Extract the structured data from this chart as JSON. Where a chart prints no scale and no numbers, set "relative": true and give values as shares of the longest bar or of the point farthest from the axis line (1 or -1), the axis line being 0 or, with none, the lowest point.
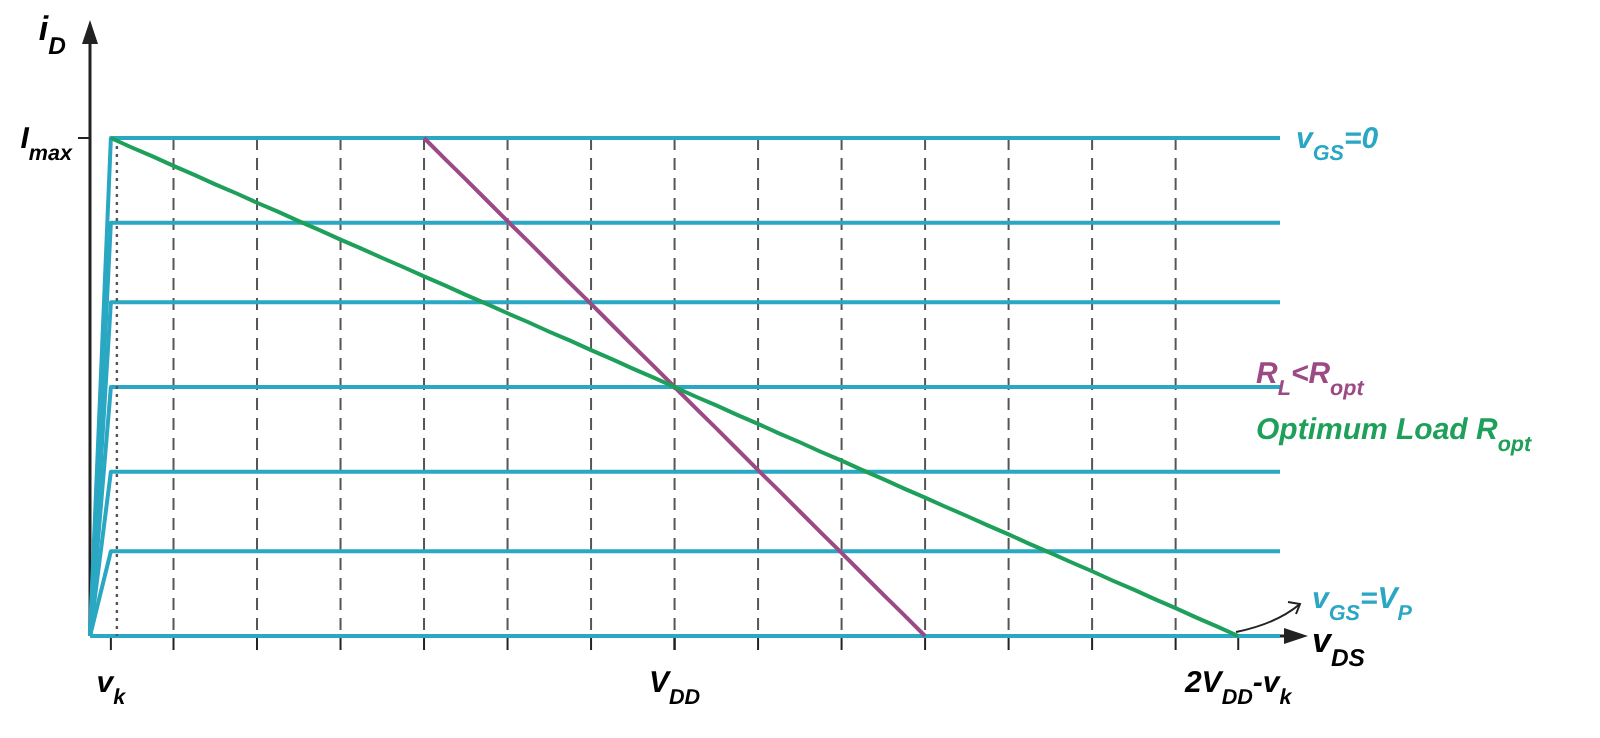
{
  "chart_data": {
    "type": "line",
    "xlabel": "v$_{DS}$",
    "ylabel": "i$_{D}$",
    "relative": true,
    "grid": "x",
    "marker": "none",
    "annotations": [
      "I$_{max}$"
    ],
    "categories": [
      null,
      "v$_{k}$",
      null,
      null,
      null,
      null,
      null,
      null,
      null,
      null,
      null,
      null,
      null,
      null,
      null,
      null,
      null,
      null,
      null,
      null,
      null,
      null,
      null,
      null,
      null,
      null,
      null,
      null,
      "V$_{DD}$",
      null,
      null,
      null,
      null,
      null,
      null,
      null,
      null,
      null,
      null,
      null,
      null,
      null,
      null,
      null,
      null,
      null,
      null,
      null,
      null,
      null,
      null,
      null,
      null,
      null,
      null,
      "2V$_{DD}$-v$_{k}$",
      null,
      null
    ],
    "ref_lines": [
      {
        "axis": "x",
        "value": "v$_{k}$",
        "color": "#555555",
        "line_style": "dotted"
      }
    ],
    "series": [
      {
        "name": "v$_{GS}$=0",
        "color": "#2aa7c3",
        "values": [
          0,
          1,
          1,
          1,
          1,
          1,
          1,
          1,
          1,
          1,
          1,
          1,
          1,
          1,
          1,
          1,
          1,
          1,
          1,
          1,
          1,
          1,
          1,
          1,
          1,
          1,
          1,
          1,
          1,
          1,
          1,
          1,
          1,
          1,
          1,
          1,
          1,
          1,
          1,
          1,
          1,
          1,
          1,
          1,
          1,
          1,
          1,
          1,
          1,
          1,
          1,
          1,
          1,
          1,
          1,
          1,
          1,
          1
        ]
      },
      {
        "color": "#2aa7c3",
        "values": [
          0,
          0.83,
          0.83,
          0.83,
          0.83,
          0.83,
          0.83,
          0.83,
          0.83,
          0.83,
          0.83,
          0.83,
          0.83,
          0.83,
          0.83,
          0.83,
          0.83,
          0.83,
          0.83,
          0.83,
          0.83,
          0.83,
          0.83,
          0.83,
          0.83,
          0.83,
          0.83,
          0.83,
          0.83,
          0.83,
          0.83,
          0.83,
          0.83,
          0.83,
          0.83,
          0.83,
          0.83,
          0.83,
          0.83,
          0.83,
          0.83,
          0.83,
          0.83,
          0.83,
          0.83,
          0.83,
          0.83,
          0.83,
          0.83,
          0.83,
          0.83,
          0.83,
          0.83,
          0.83,
          0.83,
          0.83,
          0.83,
          0.83
        ]
      },
      {
        "color": "#2aa7c3",
        "values": [
          0,
          0.67,
          0.67,
          0.67,
          0.67,
          0.67,
          0.67,
          0.67,
          0.67,
          0.67,
          0.67,
          0.67,
          0.67,
          0.67,
          0.67,
          0.67,
          0.67,
          0.67,
          0.67,
          0.67,
          0.67,
          0.67,
          0.67,
          0.67,
          0.67,
          0.67,
          0.67,
          0.67,
          0.67,
          0.67,
          0.67,
          0.67,
          0.67,
          0.67,
          0.67,
          0.67,
          0.67,
          0.67,
          0.67,
          0.67,
          0.67,
          0.67,
          0.67,
          0.67,
          0.67,
          0.67,
          0.67,
          0.67,
          0.67,
          0.67,
          0.67,
          0.67,
          0.67,
          0.67,
          0.67,
          0.67,
          0.67,
          0.67
        ]
      },
      {
        "color": "#2aa7c3",
        "values": [
          0,
          0.5,
          0.5,
          0.5,
          0.5,
          0.5,
          0.5,
          0.5,
          0.5,
          0.5,
          0.5,
          0.5,
          0.5,
          0.5,
          0.5,
          0.5,
          0.5,
          0.5,
          0.5,
          0.5,
          0.5,
          0.5,
          0.5,
          0.5,
          0.5,
          0.5,
          0.5,
          0.5,
          0.5,
          0.5,
          0.5,
          0.5,
          0.5,
          0.5,
          0.5,
          0.5,
          0.5,
          0.5,
          0.5,
          0.5,
          0.5,
          0.5,
          0.5,
          0.5,
          0.5,
          0.5,
          0.5,
          0.5,
          0.5,
          0.5,
          0.5,
          0.5,
          0.5,
          0.5,
          0.5,
          0.5,
          0.5,
          0.5
        ]
      },
      {
        "color": "#2aa7c3",
        "values": [
          0,
          0.33,
          0.33,
          0.33,
          0.33,
          0.33,
          0.33,
          0.33,
          0.33,
          0.33,
          0.33,
          0.33,
          0.33,
          0.33,
          0.33,
          0.33,
          0.33,
          0.33,
          0.33,
          0.33,
          0.33,
          0.33,
          0.33,
          0.33,
          0.33,
          0.33,
          0.33,
          0.33,
          0.33,
          0.33,
          0.33,
          0.33,
          0.33,
          0.33,
          0.33,
          0.33,
          0.33,
          0.33,
          0.33,
          0.33,
          0.33,
          0.33,
          0.33,
          0.33,
          0.33,
          0.33,
          0.33,
          0.33,
          0.33,
          0.33,
          0.33,
          0.33,
          0.33,
          0.33,
          0.33,
          0.33,
          0.33,
          0.33
        ]
      },
      {
        "color": "#2aa7c3",
        "values": [
          0,
          0.17,
          0.17,
          0.17,
          0.17,
          0.17,
          0.17,
          0.17,
          0.17,
          0.17,
          0.17,
          0.17,
          0.17,
          0.17,
          0.17,
          0.17,
          0.17,
          0.17,
          0.17,
          0.17,
          0.17,
          0.17,
          0.17,
          0.17,
          0.17,
          0.17,
          0.17,
          0.17,
          0.17,
          0.17,
          0.17,
          0.17,
          0.17,
          0.17,
          0.17,
          0.17,
          0.17,
          0.17,
          0.17,
          0.17,
          0.17,
          0.17,
          0.17,
          0.17,
          0.17,
          0.17,
          0.17,
          0.17,
          0.17,
          0.17,
          0.17,
          0.17,
          0.17,
          0.17,
          0.17,
          0.17,
          0.17,
          0.17
        ]
      },
      {
        "name": "v$_{GS}$=V$_{P}$",
        "color": "#2aa7c3",
        "values": [
          0,
          0,
          0,
          0,
          0,
          0,
          0,
          0,
          0,
          0,
          0,
          0,
          0,
          0,
          0,
          0,
          0,
          0,
          0,
          0,
          0,
          0,
          0,
          0,
          0,
          0,
          0,
          0,
          0,
          0,
          0,
          0,
          0,
          0,
          0,
          0,
          0,
          0,
          0,
          0,
          0,
          0,
          0,
          0,
          0,
          0,
          0,
          0,
          0,
          0,
          0,
          0,
          0,
          0,
          0,
          0,
          0,
          0
        ]
      },
      {
        "name": "R$_{L}$<R$_{opt}$",
        "color": "#9b4a86",
        "values": [
          null,
          null,
          null,
          null,
          null,
          null,
          null,
          null,
          null,
          null,
          null,
          null,
          null,
          null,
          null,
          null,
          1,
          0.958,
          0.917,
          0.875,
          0.833,
          0.792,
          0.75,
          0.708,
          0.667,
          0.625,
          0.583,
          0.542,
          0.5,
          0.458,
          0.417,
          0.375,
          0.333,
          0.292,
          0.25,
          0.208,
          0.167,
          0.125,
          0.083,
          0.042,
          0,
          null,
          null,
          null,
          null,
          null,
          null,
          null,
          null,
          null,
          null,
          null,
          null,
          null,
          null,
          null,
          null,
          null
        ]
      },
      {
        "name": "Optimum Load R$_{opt}$",
        "color": "#1ea05a",
        "values": [
          null,
          1,
          0.981,
          0.963,
          0.944,
          0.926,
          0.907,
          0.889,
          0.87,
          0.852,
          0.833,
          0.815,
          0.796,
          0.778,
          0.759,
          0.741,
          0.722,
          0.704,
          0.685,
          0.667,
          0.648,
          0.63,
          0.611,
          0.593,
          0.574,
          0.556,
          0.537,
          0.519,
          0.5,
          0.481,
          0.463,
          0.444,
          0.426,
          0.407,
          0.389,
          0.37,
          0.352,
          0.333,
          0.315,
          0.296,
          0.278,
          0.259,
          0.241,
          0.222,
          0.204,
          0.185,
          0.167,
          0.148,
          0.13,
          0.111,
          0.093,
          0.074,
          0.056,
          0.037,
          0.019,
          0,
          null,
          null
        ]
      }
    ]
  }
}
